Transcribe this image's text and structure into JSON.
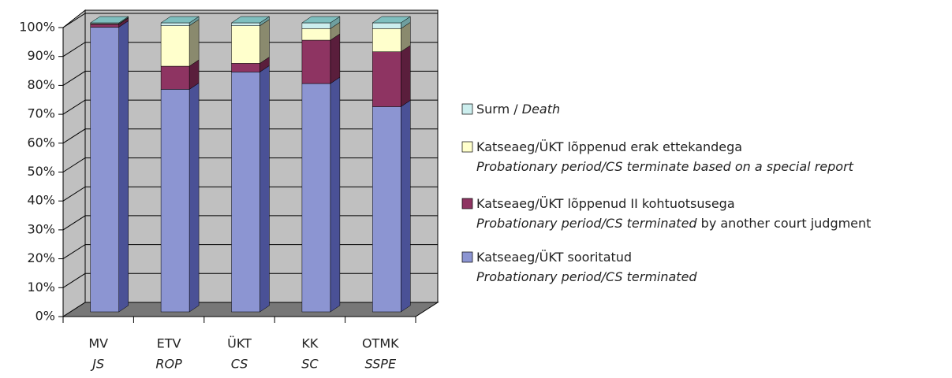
{
  "chart_data": {
    "type": "bar3d_stacked",
    "categories": [
      [
        "MV",
        "JS"
      ],
      [
        "ETV",
        "ROP"
      ],
      [
        "ÜKT",
        "CS"
      ],
      [
        "KK",
        "SC"
      ],
      [
        "OTMK",
        "SSPE"
      ]
    ],
    "series": [
      {
        "name": [
          [
            {
              "text": "Katseaeg/ÜKT sooritatud",
              "italic": false
            }
          ],
          [
            {
              "text": "Probationary period/CS terminated",
              "italic": true
            }
          ]
        ],
        "color": "#8c95d2",
        "side": "#4a5196",
        "values": [
          98.5,
          77,
          83,
          79,
          71
        ]
      },
      {
        "name": [
          [
            {
              "text": "Katseaeg/ÜKT lõppenud II kohtuotsusega",
              "italic": false
            }
          ],
          [
            {
              "text": "Probationary period/CS terminated",
              "italic": true
            },
            {
              "text": " by another court judgment",
              "italic": false
            }
          ]
        ],
        "color": "#8e3462",
        "side": "#5a1e3c",
        "values": [
          1,
          8,
          3,
          15,
          19
        ]
      },
      {
        "name": [
          [
            {
              "text": "Katseaeg/ÜKT lõppenud erak ettekandega",
              "italic": false
            }
          ],
          [
            {
              "text": "Probationary period/CS terminate based on a special report",
              "italic": true
            }
          ]
        ],
        "color": "#ffffcc",
        "side": "#8a8a6e",
        "values": [
          0.2,
          14,
          13,
          4,
          8
        ]
      },
      {
        "name": [
          [
            {
              "text": "Surm / ",
              "italic": false
            },
            {
              "text": "Death",
              "italic": true
            }
          ]
        ],
        "color": "#cceeee",
        "side": "#6f9f9f",
        "values": [
          0.3,
          1,
          1,
          2,
          2
        ]
      }
    ],
    "ylim": [
      0,
      100
    ],
    "yticks": [
      {
        "value": 0,
        "label": "0%"
      },
      {
        "value": 10,
        "label": "10%"
      },
      {
        "value": 20,
        "label": "20%"
      },
      {
        "value": 30,
        "label": "30%"
      },
      {
        "value": 40,
        "label": "40%"
      },
      {
        "value": 50,
        "label": "50%"
      },
      {
        "value": 60,
        "label": "60%"
      },
      {
        "value": 70,
        "label": "70%"
      },
      {
        "value": 80,
        "label": "80%"
      },
      {
        "value": 90,
        "label": "90%"
      },
      {
        "value": 100,
        "label": "100%"
      }
    ],
    "grid": true,
    "legend": "right"
  }
}
